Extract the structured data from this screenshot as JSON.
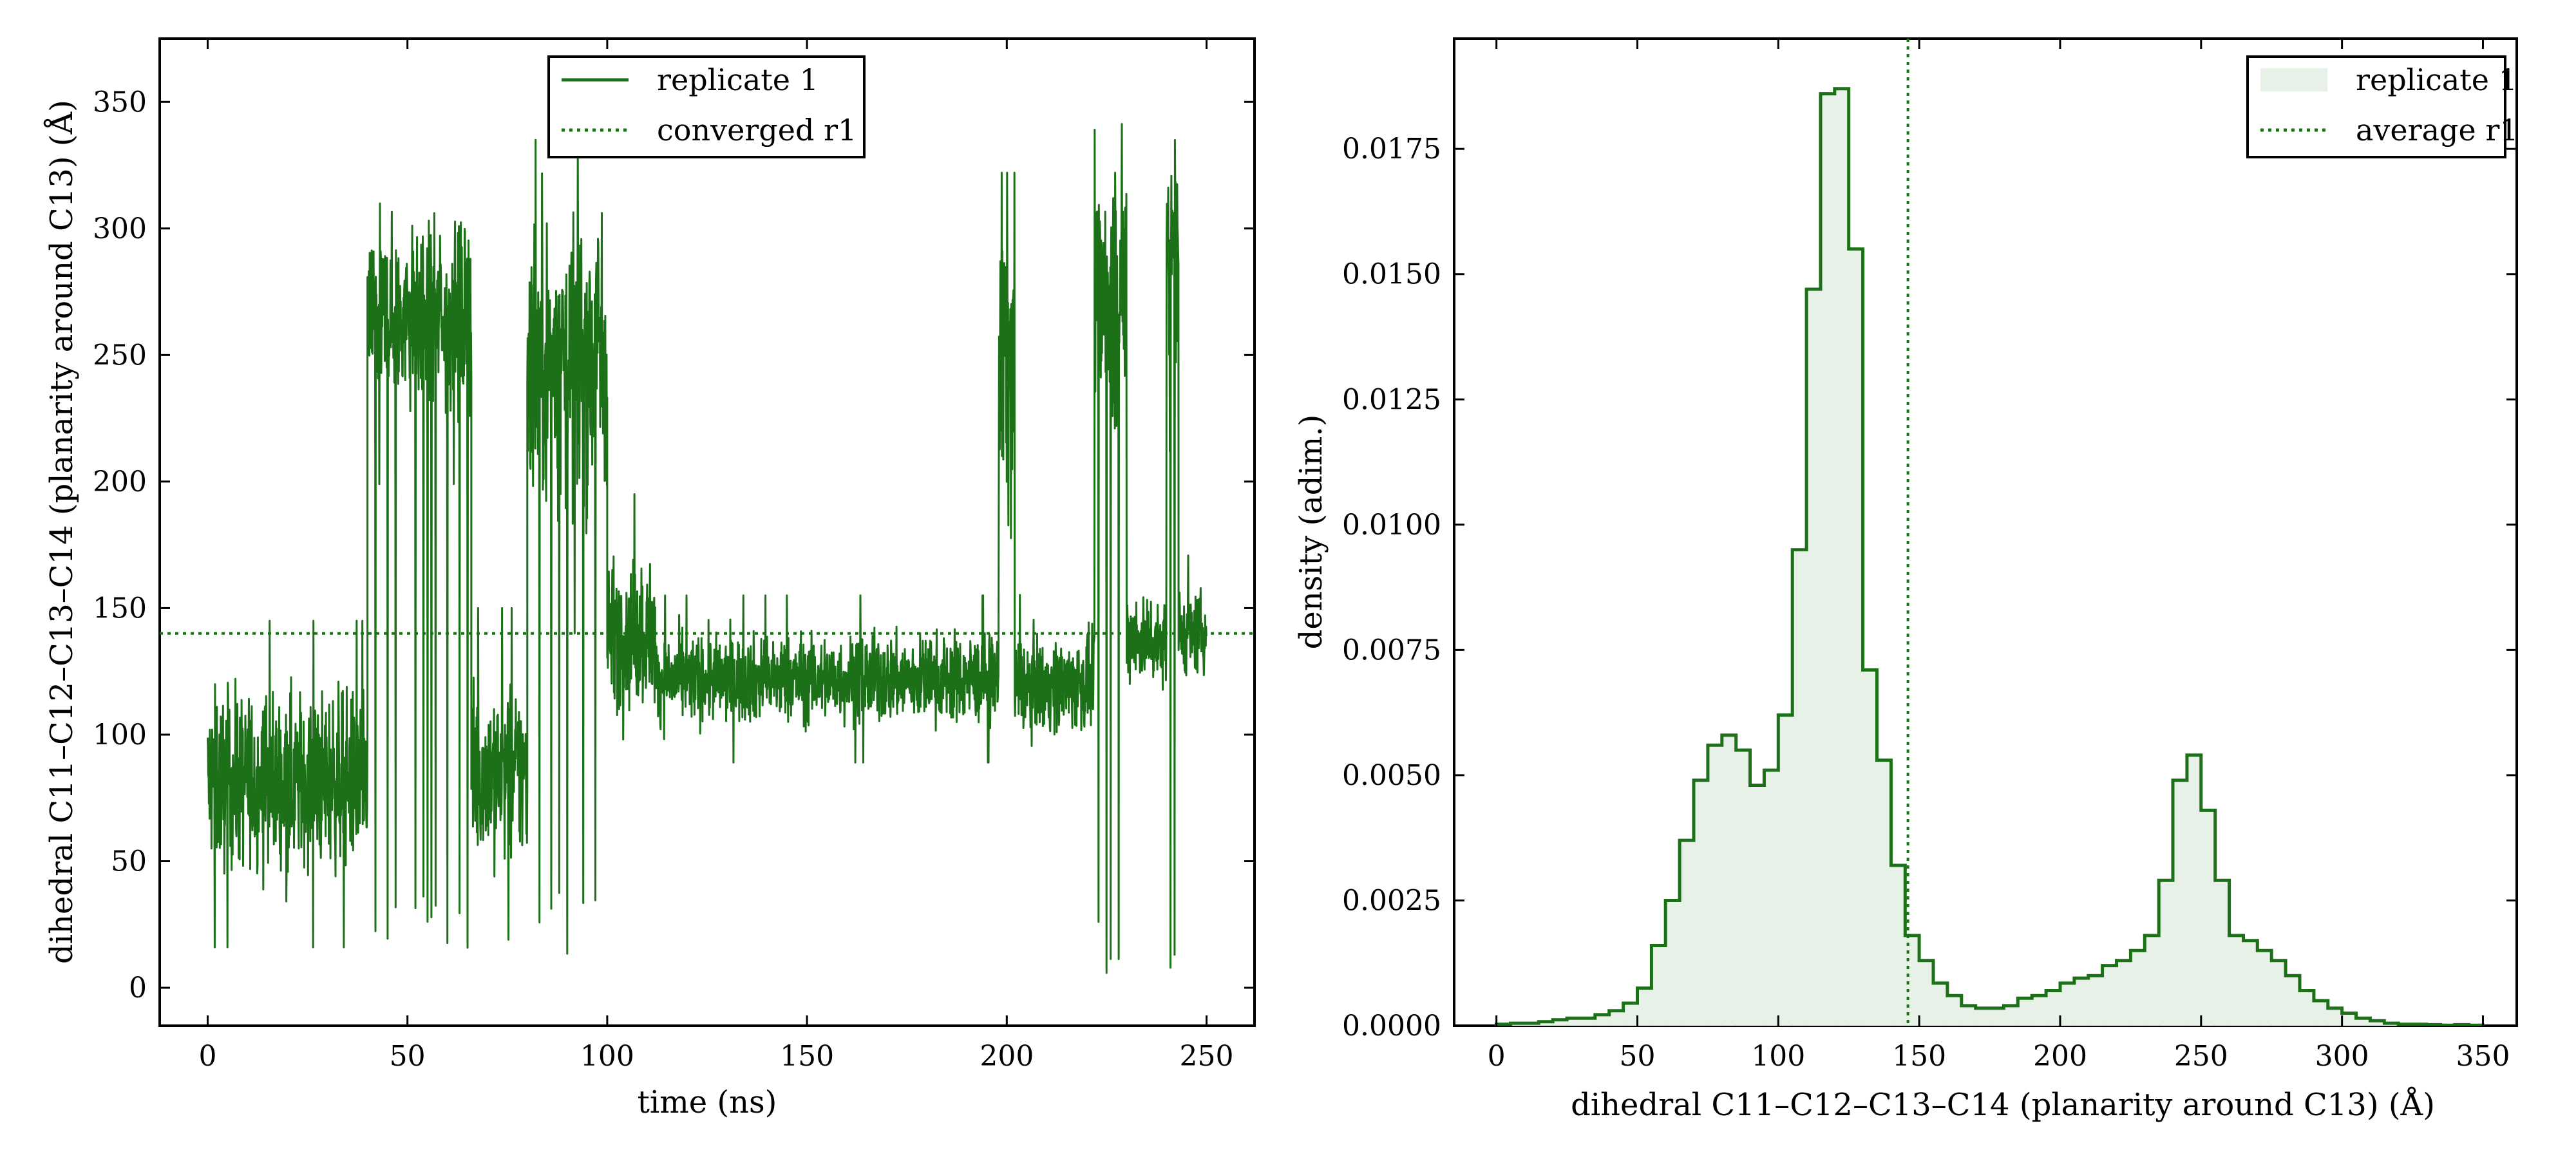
{
  "colors": {
    "series": "#1b7018",
    "fill": "#e8f1e8"
  },
  "chart_data": [
    {
      "type": "line",
      "xlabel": "time (ns)",
      "ylabel": "dihedral C11–C12–C13–C14 (planarity around C13) (Å)",
      "xlim": [
        -12,
        262
      ],
      "ylim": [
        -15,
        375
      ],
      "xticks": [
        0,
        50,
        100,
        150,
        200,
        250
      ],
      "yticks": [
        0,
        50,
        100,
        150,
        200,
        250,
        300,
        350
      ],
      "grid": false,
      "legend_position": "top-center",
      "series": [
        {
          "name": "replicate 1",
          "style": "solid",
          "segments": [
            {
              "t": [
                0,
                40
              ],
              "mean": 82,
              "spread": 30,
              "min": 10,
              "max": 145
            },
            {
              "t": [
                40,
                66
              ],
              "mean": 265,
              "spread": 30,
              "min": 8,
              "max": 355,
              "drops": [
                42,
                45,
                47,
                52,
                54,
                55,
                56,
                57,
                60,
                63,
                65
              ]
            },
            {
              "t": [
                66,
                80
              ],
              "mean": 85,
              "spread": 30,
              "min": 10,
              "max": 150
            },
            {
              "t": [
                80,
                100
              ],
              "mean": 250,
              "spread": 50,
              "min": 8,
              "max": 335,
              "drops": [
                83,
                86,
                88,
                90,
                94,
                97
              ]
            },
            {
              "t": [
                100,
                112
              ],
              "mean": 140,
              "spread": 25,
              "min": 60,
              "max": 270
            },
            {
              "t": [
                112,
                198
              ],
              "mean": 122,
              "spread": 15,
              "min": 45,
              "max": 210
            },
            {
              "t": [
                198,
                202
              ],
              "mean": 250,
              "spread": 60,
              "min": 55,
              "max": 322
            },
            {
              "t": [
                202,
                222
              ],
              "mean": 120,
              "spread": 16,
              "min": 30,
              "max": 170
            },
            {
              "t": [
                222,
                230
              ],
              "mean": 275,
              "spread": 45,
              "min": 2,
              "max": 355,
              "drops": [
                223,
                225,
                226,
                228
              ]
            },
            {
              "t": [
                230,
                240
              ],
              "mean": 138,
              "spread": 15,
              "min": 90,
              "max": 175
            },
            {
              "t": [
                240,
                243
              ],
              "mean": 300,
              "spread": 40,
              "min": 2,
              "max": 357,
              "drops": [
                241,
                242
              ]
            },
            {
              "t": [
                243,
                250
              ],
              "mean": 140,
              "spread": 14,
              "min": 110,
              "max": 175
            }
          ]
        },
        {
          "name": "converged r1",
          "style": "dotted",
          "y": 140
        }
      ]
    },
    {
      "type": "histogram",
      "xlabel": "dihedral C11–C12–C13–C14 (planarity around C13) (Å)",
      "ylabel": "density (adim.)",
      "xlim": [
        -15,
        362
      ],
      "ylim": [
        0,
        0.0197
      ],
      "xticks": [
        0,
        50,
        100,
        150,
        200,
        250,
        300,
        350
      ],
      "yticks": [
        0.0,
        0.0025,
        0.005,
        0.0075,
        0.01,
        0.0125,
        0.015,
        0.0175
      ],
      "ytick_labels": [
        "0.0000",
        "0.0025",
        "0.0050",
        "0.0075",
        "0.0100",
        "0.0125",
        "0.0150",
        "0.0175"
      ],
      "grid": false,
      "legend_position": "top-right",
      "bin_start": 0,
      "bin_width": 5,
      "densities": [
        3e-05,
        5e-05,
        5e-05,
        8e-05,
        0.00012,
        0.00015,
        0.00015,
        0.00022,
        0.0003,
        0.00045,
        0.00075,
        0.0016,
        0.0025,
        0.0037,
        0.0049,
        0.0056,
        0.0058,
        0.0055,
        0.0048,
        0.0051,
        0.0062,
        0.0095,
        0.0147,
        0.0186,
        0.0187,
        0.0155,
        0.0071,
        0.0053,
        0.0032,
        0.0018,
        0.0013,
        0.00085,
        0.0006,
        0.0004,
        0.00035,
        0.00035,
        0.0004,
        0.00055,
        0.0006,
        0.0007,
        0.00085,
        0.00095,
        0.001,
        0.0012,
        0.0013,
        0.0015,
        0.0018,
        0.0029,
        0.0049,
        0.0054,
        0.0043,
        0.0029,
        0.0018,
        0.0017,
        0.0015,
        0.0013,
        0.001,
        0.0007,
        0.0005,
        0.00035,
        0.00025,
        0.00015,
        0.0001,
        5e-05,
        3e-05,
        3e-05,
        2e-05,
        1e-05,
        2e-05,
        1e-05
      ],
      "series": [
        {
          "name": "replicate 1",
          "style": "filled-step"
        },
        {
          "name": "average r1",
          "style": "dotted",
          "x": 146
        }
      ]
    }
  ]
}
